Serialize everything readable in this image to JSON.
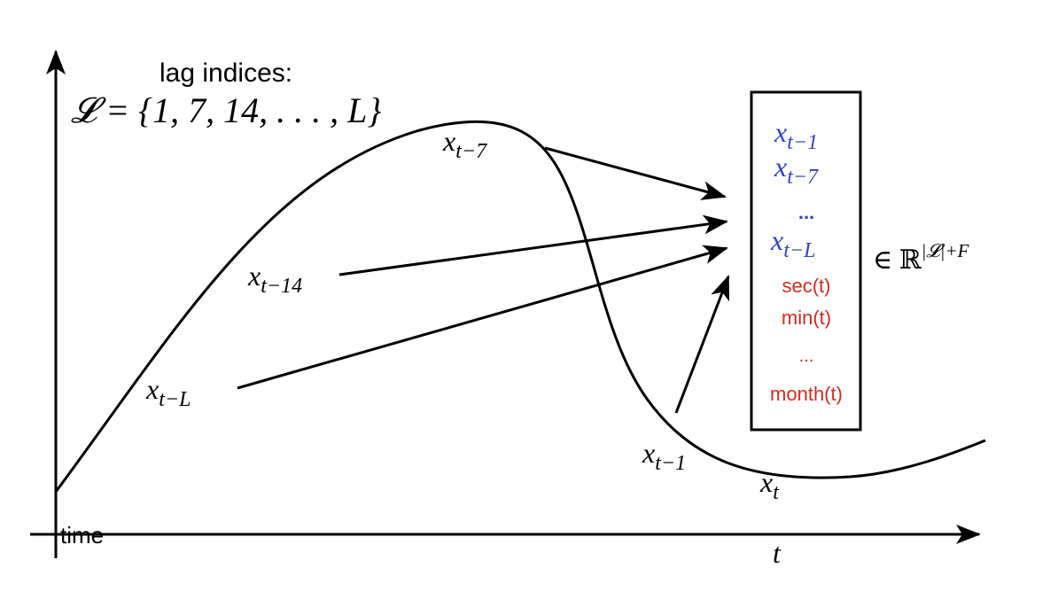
{
  "title": {
    "line1": "lag indices:",
    "line2": "𝓛 = {1, 7, 14, . . . , L}"
  },
  "axes": {
    "x_label": "time",
    "x_symbol": "t"
  },
  "curve_labels": {
    "x_t_minus_7": {
      "base": "x",
      "sub": "t−7"
    },
    "x_t_minus_14": {
      "base": "x",
      "sub": "t−14"
    },
    "x_t_minus_L": {
      "base": "x",
      "sub": "t−L"
    },
    "x_t_minus_1": {
      "base": "x",
      "sub": "t−1"
    },
    "x_t": {
      "base": "x",
      "sub": "t"
    }
  },
  "feature_vector": {
    "lags": [
      {
        "base": "x",
        "sub": "t−1"
      },
      {
        "base": "x",
        "sub": "t−7"
      },
      {
        "text": "..."
      },
      {
        "base": "x",
        "sub": "t−L"
      }
    ],
    "time_features": [
      "sec(t)",
      "min(t)",
      "...",
      "month(t)"
    ],
    "space": {
      "prefix": "∈ ℝ",
      "sup": "|𝓛|+F"
    }
  },
  "colors": {
    "lag": "#3342c8",
    "time_feature": "#d42b1e",
    "ink": "#000000"
  }
}
